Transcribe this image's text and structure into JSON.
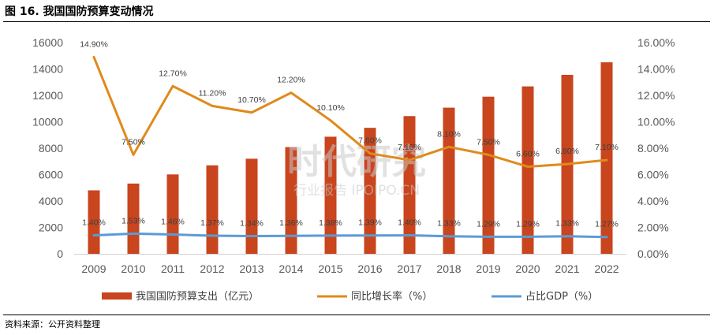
{
  "title": "图 16. 我国国防预算变动情况",
  "source": "资料来源：公开资料整理",
  "watermark": {
    "brand": "时代研究",
    "sub": "行业报告 IPOIPO.CN"
  },
  "colors": {
    "bar": "#c8451e",
    "growth": "#e08a1c",
    "gdp": "#5b9bd5",
    "tick": "#595959",
    "label": "#404040"
  },
  "chart_data": {
    "type": "bar",
    "categories": [
      "2009",
      "2010",
      "2011",
      "2012",
      "2013",
      "2014",
      "2015",
      "2016",
      "2017",
      "2018",
      "2019",
      "2020",
      "2021",
      "2022"
    ],
    "series": [
      {
        "name": "我国国防预算支出（亿元）",
        "type": "bar",
        "axis": "left",
        "values": [
          4807,
          5321,
          6012,
          6702,
          7202,
          8082,
          8869,
          9543,
          10432,
          11069,
          11899,
          12680,
          13553,
          14505
        ]
      },
      {
        "name": "同比增长率（%）",
        "type": "line",
        "axis": "right",
        "values": [
          14.9,
          7.5,
          12.7,
          11.2,
          10.7,
          12.2,
          10.1,
          7.6,
          7.1,
          8.1,
          7.5,
          6.6,
          6.8,
          7.1
        ],
        "labels": [
          "14.90%",
          "7.50%",
          "12.70%",
          "11.20%",
          "10.70%",
          "12.20%",
          "10.10%",
          "7.60%",
          "7.10%",
          "8.10%",
          "7.50%",
          "6.60%",
          "6.80%",
          "7.10%"
        ]
      },
      {
        "name": "占比GDP（%）",
        "type": "line",
        "axis": "right",
        "values": [
          1.4,
          1.53,
          1.46,
          1.37,
          1.34,
          1.36,
          1.38,
          1.39,
          1.4,
          1.33,
          1.29,
          1.29,
          1.33,
          1.27
        ],
        "labels": [
          "1.40%",
          "1.53%",
          "1.46%",
          "1.37%",
          "1.34%",
          "1.36%",
          "1.38%",
          "1.39%",
          "1.40%",
          "1.33%",
          "1.29%",
          "1.29%",
          "1.33%",
          "1.27%"
        ]
      }
    ],
    "y_left": {
      "min": 0,
      "max": 16000,
      "ticks": [
        "0",
        "2000",
        "4000",
        "6000",
        "8000",
        "10000",
        "12000",
        "14000",
        "16000"
      ]
    },
    "y_right": {
      "min": 0,
      "max": 16,
      "ticks": [
        "0.00%",
        "2.00%",
        "4.00%",
        "6.00%",
        "8.00%",
        "10.00%",
        "12.00%",
        "14.00%",
        "16.00%"
      ]
    },
    "grid": false,
    "legend_position": "bottom"
  }
}
